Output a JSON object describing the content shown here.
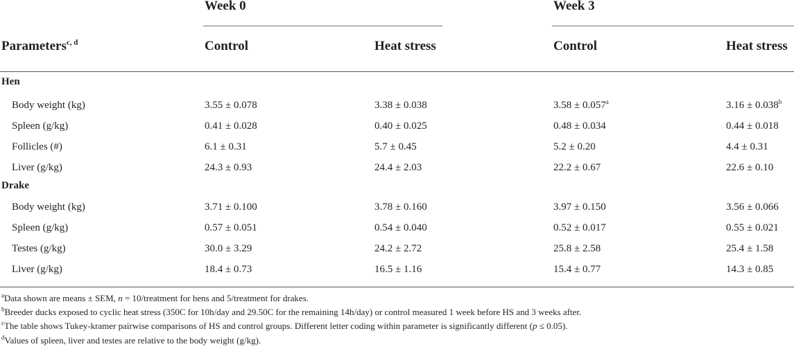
{
  "header": {
    "week0": "Week 0",
    "week3": "Week 3",
    "param_label": "Parameters",
    "param_sup": "c, d",
    "control": "Control",
    "heat_stress": "Heat stress"
  },
  "sections": [
    {
      "name": "Hen",
      "rows": [
        {
          "label": "Body weight (kg)",
          "w0c": "3.55 ± 0.078",
          "w0h": "3.38 ± 0.038",
          "w3c": "3.58 ± 0.057",
          "w3c_sup": "a",
          "w3h": "3.16 ± 0.038",
          "w3h_sup": "b"
        },
        {
          "label": "Spleen (g/kg)",
          "w0c": "0.41 ± 0.028",
          "w0h": "0.40 ± 0.025",
          "w3c": "0.48 ± 0.034",
          "w3c_sup": "",
          "w3h": "0.44 ± 0.018",
          "w3h_sup": ""
        },
        {
          "label": "Follicles (#)",
          "w0c": "6.1 ± 0.31",
          "w0h": "5.7 ± 0.45",
          "w3c": "5.2 ± 0.20",
          "w3c_sup": "",
          "w3h": "4.4 ± 0.31",
          "w3h_sup": ""
        },
        {
          "label": "Liver (g/kg)",
          "w0c": "24.3 ± 0.93",
          "w0h": "24.4 ± 2.03",
          "w3c": "22.2 ± 0.67",
          "w3c_sup": "",
          "w3h": "22.6 ± 0.10",
          "w3h_sup": ""
        }
      ]
    },
    {
      "name": "Drake",
      "rows": [
        {
          "label": "Body weight (kg)",
          "w0c": "3.71 ± 0.100",
          "w0h": "3.78 ± 0.160",
          "w3c": "3.97 ± 0.150",
          "w3c_sup": "",
          "w3h": "3.56 ± 0.066",
          "w3h_sup": ""
        },
        {
          "label": "Spleen (g/kg)",
          "w0c": "0.57 ± 0.051",
          "w0h": "0.54 ± 0.040",
          "w3c": "0.52 ± 0.017",
          "w3c_sup": "",
          "w3h": "0.55 ± 0.021",
          "w3h_sup": ""
        },
        {
          "label": "Testes (g/kg)",
          "w0c": "30.0 ± 3.29",
          "w0h": "24.2 ± 2.72",
          "w3c": "25.8 ± 2.58",
          "w3c_sup": "",
          "w3h": "25.4 ± 1.58",
          "w3h_sup": ""
        },
        {
          "label": "Liver (g/kg)",
          "w0c": "18.4 ± 0.73",
          "w0h": "16.5 ± 1.16",
          "w3c": "15.4 ± 0.77",
          "w3c_sup": "",
          "w3h": "14.3 ± 0.85",
          "w3h_sup": ""
        }
      ]
    }
  ],
  "footnotes": {
    "a": {
      "mark": "a",
      "pre": "Data shown are means ± SEM, ",
      "n": "n",
      "post": " = 10/treatment for hens and 5/treatment for drakes."
    },
    "b": {
      "mark": "b",
      "text": "Breeder ducks exposed to cyclic heat stress (350C for 10h/day and 29.50C for the remaining 14h/day) or control measured 1 week before HS and 3 weeks after."
    },
    "c": {
      "mark": "c",
      "pre": "The table shows Tukey-kramer pairwise comparisons of HS and control groups. Different letter coding within parameter is significantly different (",
      "p": "p",
      "post": " ≤ 0.05)."
    },
    "d": {
      "mark": "d",
      "text": "Values of spleen, liver and testes are relative to the body weight (g/kg)."
    }
  }
}
